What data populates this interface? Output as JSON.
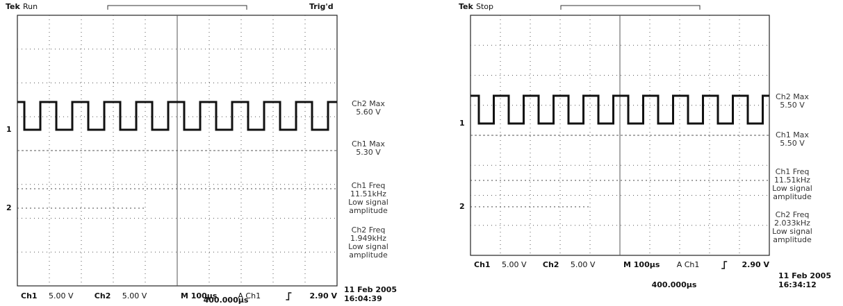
{
  "scopes": [
    {
      "brand": "Tek",
      "status": "Run",
      "trigger_status": "Trig'd",
      "ch1_marker": "1",
      "ch2_marker": "2",
      "readouts": [
        [
          "Ch2 Max",
          "5.60 V"
        ],
        [
          "Ch1 Max",
          "5.30 V"
        ],
        [
          "Ch1 Freq",
          "11.51kHz",
          "Low signal",
          "amplitude"
        ],
        [
          "Ch2 Freq",
          "1.949kHz",
          "Low signal",
          "amplitude"
        ]
      ],
      "channels": [
        {
          "name": "Ch1",
          "scale": "5.00 V"
        },
        {
          "name": "Ch2",
          "scale": "5.00 V"
        }
      ],
      "timebase": "M 100µs",
      "trigger_source": "A  Ch1",
      "trigger_level": "2.90 V",
      "position": "400.000µs",
      "date": "11 Feb 2005",
      "time": "16:04:39"
    },
    {
      "brand": "Tek",
      "status": "Stop",
      "ch1_marker": "1",
      "ch2_marker": "2",
      "readouts": [
        [
          "Ch2 Max",
          "5.50 V"
        ],
        [
          "Ch1 Max",
          "5.50 V"
        ],
        [
          "Ch1 Freq",
          "11.51kHz",
          "Low signal",
          "amplitude"
        ],
        [
          "Ch2 Freq",
          "2.033kHz",
          "Low signal",
          "amplitude"
        ]
      ],
      "channels": [
        {
          "name": "Ch1",
          "scale": "5.00 V"
        },
        {
          "name": "Ch2",
          "scale": "5.00 V"
        }
      ],
      "timebase": "M 100µs",
      "trigger_source": "A  Ch1",
      "trigger_level": "2.90 V",
      "position": "400.000µs",
      "date": "11 Feb 2005",
      "time": "16:34:12"
    }
  ]
}
